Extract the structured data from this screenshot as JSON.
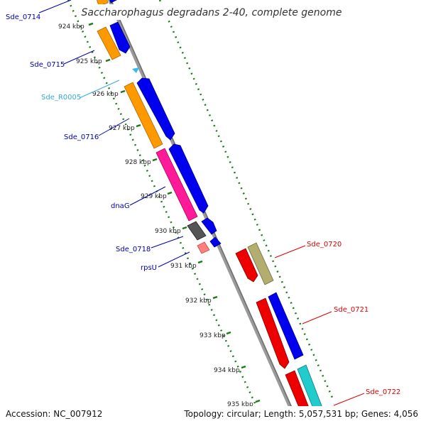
{
  "title": "Saccharophagus degradans 2-40, complete genome",
  "footer": {
    "accession": "Accession: NC_007912",
    "summary": "Topology: circular; Length: 5,057,531 bp; Genes: 4,056"
  },
  "ticks": [
    "924 kbp",
    "925 kbp",
    "926 kbp",
    "927 kbp",
    "928 kbp",
    "929 kbp",
    "930 kbp",
    "931 kbp",
    "932 kbp",
    "933 kbp",
    "934 kbp",
    "935 kbp"
  ],
  "gene_labels": [
    {
      "name": "Sde_0714",
      "color": "#0000aa"
    },
    {
      "name": "Sde_0715",
      "color": "#0000aa"
    },
    {
      "name": "Sde_R0005",
      "color": "#33aadd"
    },
    {
      "name": "Sde_0716",
      "color": "#0000aa"
    },
    {
      "name": "dnaG",
      "color": "#0000aa"
    },
    {
      "name": "Sde_0718",
      "color": "#0000aa"
    },
    {
      "name": "rpsU",
      "color": "#0000aa"
    },
    {
      "name": "Sde_0720",
      "color": "#dd0000"
    },
    {
      "name": "Sde_0721",
      "color": "#dd0000"
    },
    {
      "name": "Sde_0722",
      "color": "#dd0000"
    }
  ],
  "colors": {
    "backbone": "#8c8c8c",
    "gc_ring": "#1a7a1a",
    "cds_forward": "#0000ee",
    "orange": "#ff9900",
    "magenta": "#ff1a99",
    "gray": "#555555",
    "pink": "#ff8080",
    "olive": "#b3ad70",
    "red": "#ee0000",
    "cyan": "#22cccc",
    "trna": "#33bbee"
  }
}
